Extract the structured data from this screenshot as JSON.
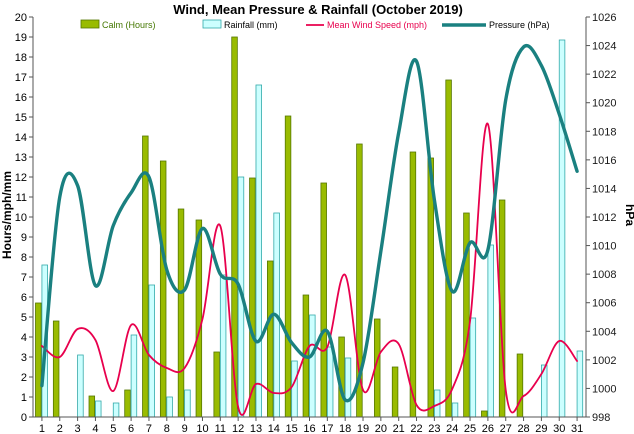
{
  "chart_data": {
    "type": "bar",
    "title": "Wind, Mean Pressure & Rainfall (October 2019)",
    "ylabel": "Hours/mph/mm",
    "y2label": "hPa",
    "categories": [
      "1",
      "2",
      "3",
      "4",
      "5",
      "6",
      "7",
      "8",
      "9",
      "10",
      "11",
      "12",
      "13",
      "14",
      "15",
      "16",
      "17",
      "18",
      "19",
      "20",
      "21",
      "22",
      "23",
      "24",
      "25",
      "26",
      "27",
      "28",
      "29",
      "30",
      "31"
    ],
    "ylim": [
      0,
      20
    ],
    "y2lim": [
      998,
      1026
    ],
    "yticks": [
      "0",
      "1",
      "2",
      "3",
      "4",
      "5",
      "6",
      "7",
      "8",
      "9",
      "10",
      "11",
      "12",
      "13",
      "14",
      "15",
      "16",
      "17",
      "18",
      "19",
      "20"
    ],
    "y2ticks": [
      "998",
      "1000",
      "1002",
      "1004",
      "1006",
      "1008",
      "1010",
      "1012",
      "1014",
      "1016",
      "1018",
      "1020",
      "1022",
      "1024",
      "1026"
    ],
    "grid": false,
    "legend_position": "top",
    "series": [
      {
        "name": "Calm (Hours)",
        "kind": "bar",
        "axis": "left",
        "color": "#99bb00",
        "stroke": "#557700",
        "values": [
          5.7,
          4.8,
          0,
          1.05,
          0,
          1.35,
          14.05,
          12.8,
          10.4,
          9.85,
          3.25,
          19.0,
          11.95,
          7.8,
          15.05,
          6.1,
          11.7,
          4.0,
          13.65,
          4.9,
          2.5,
          13.25,
          12.95,
          16.85,
          10.2,
          0.3,
          10.85,
          3.15,
          0,
          0,
          0
        ]
      },
      {
        "name": "Rainfall (mm)",
        "kind": "bar",
        "axis": "left",
        "color": "#ccffff",
        "stroke": "#33aaaa",
        "values": [
          7.6,
          0,
          3.1,
          0.8,
          0.7,
          4.1,
          6.6,
          1.0,
          1.35,
          0,
          7.1,
          12.0,
          16.6,
          10.2,
          2.8,
          5.1,
          3.5,
          2.95,
          0,
          0,
          0,
          0,
          1.35,
          0.7,
          4.95,
          8.6,
          0,
          0,
          2.6,
          18.85,
          3.3
        ]
      },
      {
        "name": "Mean Wind Speed (mph)",
        "kind": "line",
        "axis": "left",
        "color": "#e8004d",
        "values": [
          3.55,
          3.0,
          4.4,
          3.85,
          1.3,
          4.6,
          3.1,
          2.45,
          2.45,
          4.9,
          9.55,
          0.5,
          1.65,
          1.2,
          1.5,
          3.55,
          3.5,
          7.1,
          1.35,
          3.25,
          3.65,
          0.6,
          0.55,
          1.4,
          4.8,
          14.65,
          1.35,
          1.05,
          2.15,
          3.8,
          2.8
        ]
      },
      {
        "name": "Pressure (hPa)",
        "kind": "line",
        "axis": "right",
        "color": "#1a8080",
        "values": [
          1000.2,
          1013.4,
          1014.2,
          1007.2,
          1011.4,
          1013.7,
          1014.8,
          1008.3,
          1006.9,
          1011.2,
          1008.0,
          1007.3,
          1003.3,
          1005.2,
          1003.2,
          1002.2,
          1004.0,
          999.2,
          1001.8,
          1009.6,
          1017.9,
          1022.9,
          1013.2,
          1006.8,
          1010.2,
          1009.7,
          1020.2,
          1023.9,
          1022.6,
          1019.2,
          1015.2
        ]
      }
    ]
  }
}
